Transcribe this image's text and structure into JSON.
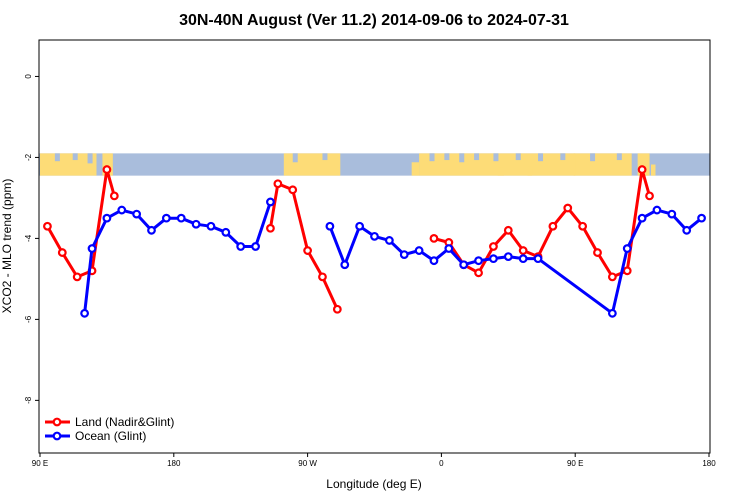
{
  "chart_data": {
    "type": "line",
    "title": "30N-40N August (Ver 11.2)   2014-09-06 to 2024-07-31",
    "xlabel": "Longitude (deg E)",
    "ylabel": "XCO2 - MLO trend (ppm)",
    "xlim": [
      90,
      540
    ],
    "ylim": [
      -9.3,
      0.9
    ],
    "x_ticks": [
      {
        "value": 90,
        "label": "90 E"
      },
      {
        "value": 180,
        "label": "180"
      },
      {
        "value": 270,
        "label": "90 W"
      },
      {
        "value": 360,
        "label": "0"
      },
      {
        "value": 450,
        "label": "90 E"
      },
      {
        "value": 540,
        "label": "180"
      }
    ],
    "y_ticks": [
      {
        "value": 0,
        "label": "0"
      },
      {
        "value": -2,
        "label": "-2"
      },
      {
        "value": -4,
        "label": "-4"
      },
      {
        "value": -6,
        "label": "-6"
      },
      {
        "value": -8,
        "label": "-8"
      }
    ],
    "map_strip": {
      "ymin": -2.45,
      "ymax": -1.9,
      "ocean_color": "#a9bddc",
      "land_color": "#fddc77"
    },
    "series": [
      {
        "name": "Land (Nadir&Glint)",
        "color": "#ff0000",
        "segments": [
          [
            [
              95,
              -3.7
            ],
            [
              105,
              -4.35
            ],
            [
              115,
              -4.95
            ],
            [
              125,
              -4.8
            ],
            [
              135,
              -2.3
            ],
            [
              140,
              -2.95
            ]
          ],
          [
            [
              245,
              -3.75
            ],
            [
              250,
              -2.65
            ],
            [
              260,
              -2.8
            ],
            [
              270,
              -4.3
            ],
            [
              280,
              -4.95
            ],
            [
              290,
              -5.75
            ]
          ],
          [
            [
              355,
              -4.0
            ],
            [
              365,
              -4.1
            ],
            [
              375,
              -4.65
            ],
            [
              385,
              -4.85
            ],
            [
              395,
              -4.2
            ],
            [
              405,
              -3.8
            ],
            [
              415,
              -4.3
            ],
            [
              425,
              -4.45
            ],
            [
              435,
              -3.7
            ],
            [
              445,
              -3.25
            ],
            [
              455,
              -3.7
            ],
            [
              465,
              -4.35
            ],
            [
              475,
              -4.95
            ],
            [
              485,
              -4.8
            ],
            [
              495,
              -2.3
            ],
            [
              500,
              -2.95
            ]
          ]
        ]
      },
      {
        "name": "Ocean (Glint)",
        "color": "#0000ff",
        "segments": [
          [
            [
              120,
              -5.85
            ],
            [
              125,
              -4.25
            ],
            [
              135,
              -3.5
            ],
            [
              145,
              -3.3
            ],
            [
              155,
              -3.4
            ],
            [
              165,
              -3.8
            ],
            [
              175,
              -3.5
            ],
            [
              185,
              -3.5
            ],
            [
              195,
              -3.65
            ],
            [
              205,
              -3.7
            ],
            [
              215,
              -3.85
            ],
            [
              225,
              -4.2
            ],
            [
              235,
              -4.2
            ],
            [
              245,
              -3.1
            ]
          ],
          [
            [
              285,
              -3.7
            ],
            [
              295,
              -4.65
            ],
            [
              305,
              -3.7
            ],
            [
              315,
              -3.95
            ],
            [
              325,
              -4.05
            ],
            [
              335,
              -4.4
            ],
            [
              345,
              -4.3
            ],
            [
              355,
              -4.55
            ],
            [
              365,
              -4.25
            ],
            [
              375,
              -4.65
            ],
            [
              385,
              -4.55
            ],
            [
              395,
              -4.5
            ],
            [
              405,
              -4.45
            ],
            [
              415,
              -4.5
            ],
            [
              425,
              -4.5
            ],
            [
              475,
              -5.85
            ],
            [
              485,
              -4.25
            ],
            [
              495,
              -3.5
            ],
            [
              505,
              -3.3
            ],
            [
              515,
              -3.4
            ],
            [
              525,
              -3.8
            ],
            [
              535,
              -3.5
            ]
          ]
        ]
      }
    ],
    "legend_position": "bottom-left",
    "grid": false
  }
}
